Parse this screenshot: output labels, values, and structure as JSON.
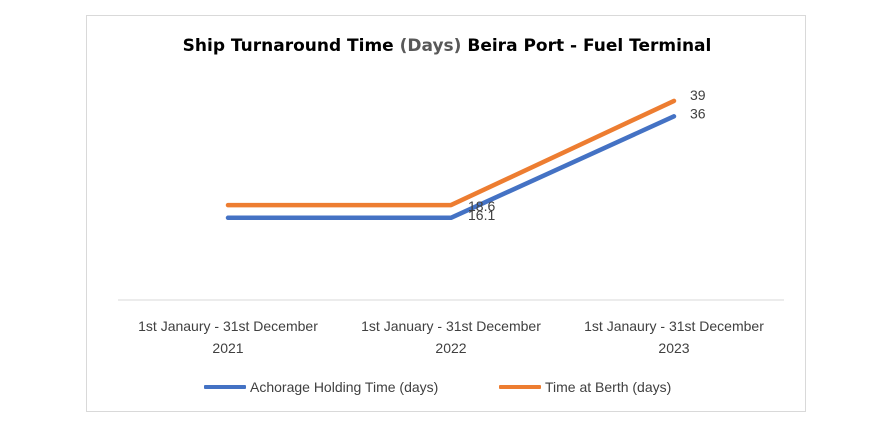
{
  "chart_data": {
    "type": "line",
    "title": "Ship Turnaround Time (Days) Beira Port - Fuel Terminal",
    "title_parts": {
      "before": "Ship Turnaround Time ",
      "paren": "(Days)",
      "after": " Beira Port - Fuel Terminal"
    },
    "categories": [
      [
        "1st Janaury - 31st December",
        "2021"
      ],
      [
        "1st January - 31st December",
        "2022"
      ],
      [
        "1st Janaury - 31st December",
        "2023"
      ]
    ],
    "series": [
      {
        "name": "Achorage Holding Time (days)",
        "color": "#4472C4",
        "values": [
          16.1,
          16.1,
          36
        ],
        "labels": [
          "",
          "16.1",
          "36"
        ]
      },
      {
        "name": "Time at Berth (days)",
        "color": "#ED7D31",
        "values": [
          18.6,
          18.6,
          39
        ],
        "labels": [
          "",
          "18.6",
          "39"
        ]
      }
    ],
    "ylim": [
      0,
      45
    ],
    "grid": false,
    "legend_position": "bottom"
  }
}
